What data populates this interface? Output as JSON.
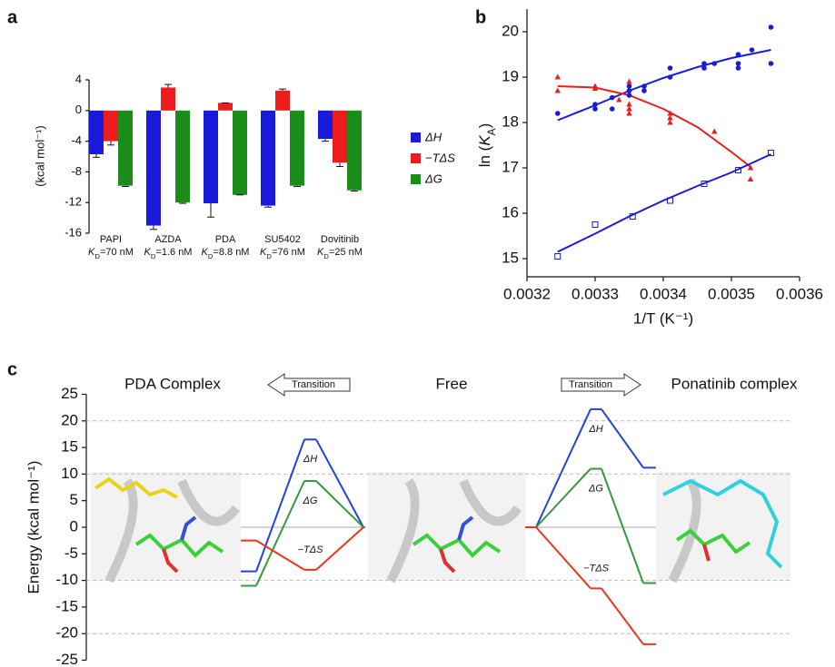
{
  "chart_data": [
    {
      "type": "bar",
      "panel": "a",
      "ylabel": "(kcal mol⁻¹)",
      "categories": [
        "PAPI",
        "AZDA",
        "PDA",
        "SU5402",
        "Dovitinib"
      ],
      "kd_labels": [
        "KD=70 nM",
        "KD=1.6 nM",
        "KD=8.8 nM",
        "KD=76 nM",
        "KD=25 nM"
      ],
      "ylim": [
        -16,
        4
      ],
      "yticks": [
        -16,
        -12,
        -8,
        -4,
        0,
        4
      ],
      "series": [
        {
          "name": "ΔH",
          "color": "#1a1adb",
          "values": [
            -5.7,
            -15,
            -12.1,
            -12.4,
            -3.7
          ],
          "errors": [
            0.4,
            0.5,
            1.8,
            0.2,
            0.3
          ]
        },
        {
          "name": "−TΔS",
          "color": "#ee1c1c",
          "values": [
            -4,
            3.0,
            1.0,
            2.6,
            -6.8
          ],
          "errors": [
            0.5,
            0.4,
            0,
            0.2,
            0.5
          ]
        },
        {
          "name": "ΔG",
          "color": "#1a8c1a",
          "values": [
            -9.8,
            -12,
            -11,
            -9.8,
            -10.4
          ],
          "errors": [
            0.1,
            0.1,
            0,
            0.1,
            0.1
          ]
        }
      ]
    },
    {
      "type": "scatter",
      "panel": "b",
      "xlabel": "1/T (K⁻¹)",
      "ylabel": "ln (KA)",
      "xlim": [
        0.0032,
        0.0036
      ],
      "xticks": [
        0.0032,
        0.0033,
        0.0034,
        0.0035,
        0.0036
      ],
      "ylim": [
        14.6,
        20.5
      ],
      "yticks": [
        15,
        16,
        17,
        18,
        19,
        20
      ],
      "series": [
        {
          "color": "#1a1adb",
          "marker": "circle",
          "x": [
            0.003245,
            0.0033,
            0.0033,
            0.003325,
            0.003325,
            0.00335,
            0.00335,
            0.00335,
            0.003372,
            0.003372,
            0.00341,
            0.00341,
            0.00346,
            0.00346,
            0.003475,
            0.00351,
            0.00351,
            0.00351,
            0.00353,
            0.003558,
            0.003558
          ],
          "values": [
            18.2,
            18.3,
            18.4,
            18.3,
            18.55,
            18.7,
            18.8,
            18.6,
            18.7,
            18.8,
            19.0,
            19.2,
            19.2,
            19.3,
            19.3,
            19.2,
            19.3,
            19.5,
            19.6,
            20.1,
            19.3
          ]
        },
        {
          "color": "#ee1c1c",
          "marker": "triangle",
          "x": [
            0.003245,
            0.003245,
            0.0033,
            0.0033,
            0.00335,
            0.00335,
            0.00335,
            0.00335,
            0.003335,
            0.00341,
            0.00341,
            0.00341,
            0.003475,
            0.003528,
            0.003528
          ],
          "values": [
            19.0,
            18.7,
            18.8,
            18.75,
            18.9,
            18.4,
            18.3,
            18.2,
            18.5,
            18.2,
            18.1,
            18.0,
            17.8,
            17.0,
            16.75
          ]
        },
        {
          "color": "#1a1adb",
          "marker": "square-open",
          "x": [
            0.003245,
            0.0033,
            0.003355,
            0.00341,
            0.00346,
            0.00351,
            0.003558
          ],
          "values": [
            15.05,
            15.75,
            15.93,
            16.28,
            16.65,
            16.95,
            17.33
          ]
        }
      ],
      "fits": [
        {
          "color": "#1a1adb",
          "x": [
            0.003245,
            0.0033,
            0.00335,
            0.0034,
            0.00345,
            0.0035,
            0.003558
          ],
          "values": [
            18.05,
            18.38,
            18.7,
            18.98,
            19.22,
            19.42,
            19.6
          ]
        },
        {
          "color": "#ee1c1c",
          "x": [
            0.003245,
            0.0033,
            0.00335,
            0.0034,
            0.00345,
            0.0035,
            0.00353
          ],
          "values": [
            18.8,
            18.77,
            18.6,
            18.3,
            17.9,
            17.35,
            17.0
          ]
        },
        {
          "color": "#1a1adb",
          "x": [
            0.003245,
            0.0033,
            0.00335,
            0.0034,
            0.00345,
            0.0035,
            0.003558
          ],
          "values": [
            15.15,
            15.55,
            15.93,
            16.28,
            16.6,
            16.9,
            17.3
          ]
        }
      ]
    },
    {
      "type": "profile",
      "panel": "c",
      "ylabel": "Energy (kcal mol⁻¹)",
      "ylim": [
        -25,
        25
      ],
      "yticks": [
        -25,
        -20,
        -15,
        -10,
        -5,
        0,
        5,
        10,
        15,
        20,
        25
      ],
      "gridlines": [
        20,
        10,
        -10,
        -20
      ],
      "stages": [
        "PDA Complex",
        "Free",
        "Ponatinib complex"
      ],
      "transition_labels": [
        "Transition",
        "Transition"
      ],
      "profiles": [
        {
          "series": [
            {
              "name": "ΔH",
              "color": "#2244dd",
              "values": [
                -8.3,
                16.5,
                0
              ]
            },
            {
              "name": "ΔG",
              "color": "#33993a",
              "values": [
                -11,
                8.7,
                0
              ]
            },
            {
              "name": "−TΔS",
              "color": "#ee3322",
              "values": [
                -2.5,
                -8,
                0
              ]
            }
          ]
        },
        {
          "series": [
            {
              "name": "ΔH",
              "color": "#2244dd",
              "values": [
                0,
                22.2,
                11.2
              ]
            },
            {
              "name": "ΔG",
              "color": "#33993a",
              "values": [
                0,
                11,
                -10.5
              ]
            },
            {
              "name": "−TΔS",
              "color": "#ee3322",
              "values": [
                0,
                -11.5,
                -22
              ]
            }
          ]
        }
      ]
    }
  ]
}
